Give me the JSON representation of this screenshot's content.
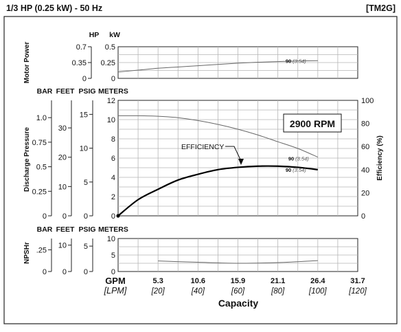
{
  "header": {
    "title": "1/3 HP (0.25 kW) - 50 Hz",
    "code": "[TM2G]"
  },
  "colors": {
    "grid": "#b5b5b5",
    "frame": "#222222",
    "head_curve": "#666666",
    "efficiency_curve": "#000000",
    "power_curve": "#666666",
    "npsh_curve": "#666666"
  },
  "rpm_label": "2900 RPM",
  "capacity": {
    "gpm_label": "GPM",
    "lpm_label": "[LPM]",
    "title": "Capacity",
    "gpm_ticks": [
      "5.3",
      "10.6",
      "15.9",
      "21.1",
      "26.4",
      "31.7"
    ],
    "lpm_ticks": [
      "[20]",
      "[40]",
      "[60]",
      "[80]",
      "[100]",
      "[120]"
    ]
  },
  "chart_data": [
    {
      "type": "line",
      "title": "Motor Power",
      "axes": {
        "hp": {
          "label": "HP",
          "ticks": [
            "0.7",
            "0.35",
            "0"
          ]
        },
        "kw": {
          "label": "kW",
          "ticks": [
            "0.5",
            "0.25",
            "0"
          ]
        }
      },
      "ylim": [
        0,
        0.5
      ],
      "x": [
        0,
        10,
        20,
        30,
        40,
        50,
        60,
        70,
        80,
        90,
        100
      ],
      "series": [
        {
          "values": [
            0.1,
            0.13,
            0.16,
            0.18,
            0.2,
            0.22,
            0.24,
            0.255,
            0.265,
            0.275,
            0.28
          ]
        }
      ],
      "end_label": {
        "lpm": "90",
        "gpm": "(3.54)"
      }
    },
    {
      "type": "line",
      "title": "Discharge Pressure",
      "axes": {
        "bar": {
          "label": "BAR",
          "ticks": [
            "1.0",
            "0.75",
            "0.5",
            "0.25",
            "0"
          ]
        },
        "feet": {
          "label": "FEET",
          "ticks": [
            "30",
            "20",
            "10",
            "0"
          ]
        },
        "psig": {
          "label": "PSIG",
          "ticks": [
            "15",
            "10",
            "5",
            "0"
          ]
        },
        "meters": {
          "label": "METERS",
          "ticks": [
            "12",
            "10",
            "8",
            "6",
            "4",
            "2",
            "0"
          ]
        },
        "efficiency": {
          "label": "Efficiency (%)",
          "ticks": [
            "100",
            "80",
            "60",
            "40",
            "20",
            "0"
          ]
        }
      },
      "ylim": [
        0,
        12
      ],
      "y2lim": [
        0,
        100
      ],
      "x": [
        0,
        10,
        20,
        30,
        40,
        50,
        60,
        70,
        80,
        90,
        100
      ],
      "series": [
        {
          "values": [
            10.4,
            10.4,
            10.35,
            10.2,
            9.9,
            9.5,
            9.0,
            8.4,
            7.7,
            7.0,
            6.1
          ]
        },
        {
          "name": "EFFICIENCY",
          "values": [
            0,
            14,
            23,
            31,
            36,
            40,
            42,
            43,
            43,
            42,
            40
          ]
        }
      ],
      "end_label": {
        "lpm": "90",
        "gpm": "(3.54)"
      }
    },
    {
      "type": "line",
      "title": "NPSHr",
      "axes": {
        "bar": {
          "label": "BAR",
          "ticks": [
            ".25",
            "0"
          ]
        },
        "feet": {
          "label": "FEET",
          "ticks": [
            "10",
            "0"
          ]
        },
        "psig": {
          "label": "PSIG",
          "ticks": [
            "5",
            "0"
          ]
        },
        "meters": {
          "label": "METERS",
          "ticks": [
            "10",
            "5",
            "0"
          ]
        }
      },
      "ylim": [
        0,
        10
      ],
      "x": [
        20,
        40,
        60,
        80,
        100
      ],
      "series": [
        {
          "values": [
            3.2,
            2.8,
            2.5,
            2.7,
            3.3
          ]
        }
      ]
    }
  ]
}
